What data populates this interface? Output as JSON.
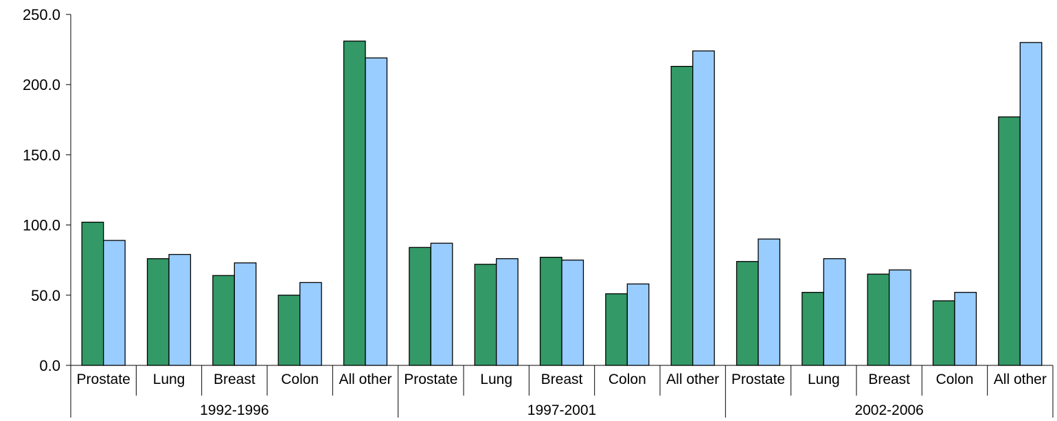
{
  "chart_data": {
    "type": "bar",
    "title": "",
    "xlabel": "",
    "ylabel": "",
    "ylim": [
      0,
      250
    ],
    "yticks": [
      "0.0",
      "50.0",
      "100.0",
      "150.0",
      "200.0",
      "250.0"
    ],
    "grid": false,
    "legend": "none",
    "groups": [
      {
        "label": "1992-1996",
        "categories": [
          "Prostate",
          "Lung",
          "Breast",
          "Colon",
          "All other"
        ],
        "series": [
          {
            "values": [
              102,
              76,
              64,
              50,
              231
            ],
            "color": "#339966"
          },
          {
            "values": [
              89,
              79,
              73,
              59,
              219
            ],
            "color": "#99ccff"
          }
        ]
      },
      {
        "label": "1997-2001",
        "categories": [
          "Prostate",
          "Lung",
          "Breast",
          "Colon",
          "All other"
        ],
        "series": [
          {
            "values": [
              84,
              72,
              77,
              51,
              213
            ],
            "color": "#339966"
          },
          {
            "values": [
              87,
              76,
              75,
              58,
              224
            ],
            "color": "#99ccff"
          }
        ]
      },
      {
        "label": "2002-2006",
        "categories": [
          "Prostate",
          "Lung",
          "Breast",
          "Colon",
          "All other"
        ],
        "series": [
          {
            "values": [
              74,
              52,
              65,
              46,
              177
            ],
            "color": "#339966"
          },
          {
            "values": [
              90,
              76,
              68,
              52,
              230
            ],
            "color": "#99ccff"
          }
        ]
      }
    ]
  }
}
